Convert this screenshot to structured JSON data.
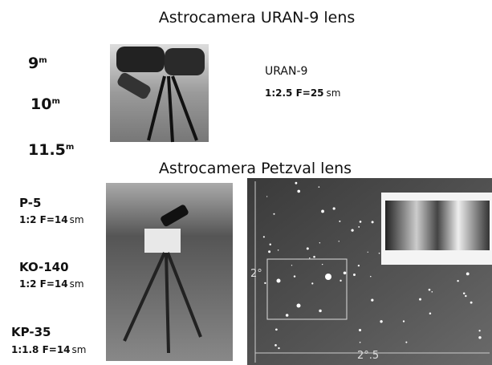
{
  "header": {
    "title": "Astrocamera URAN-9 lens"
  },
  "magnitudes": [
    {
      "value": "9",
      "sup": "m"
    },
    {
      "value": "10",
      "sup": "m"
    },
    {
      "value": "11.5",
      "sup": "m"
    }
  ],
  "uran": {
    "name": "URAN-9",
    "spec": "1:2.5 F=25",
    "unit": "sm"
  },
  "petzval": {
    "title": "Astrocamera Petzval lens",
    "lenses": [
      {
        "name": "P-5",
        "spec": "1:2 F=14",
        "unit": "sm"
      },
      {
        "name": "KO-140",
        "spec": "1:2 F=14",
        "unit": "sm"
      },
      {
        "name": "KP-35",
        "spec": "1:1.8 F=14",
        "unit": "sm"
      }
    ],
    "field_height": "2°",
    "field_width": "2°.5"
  }
}
